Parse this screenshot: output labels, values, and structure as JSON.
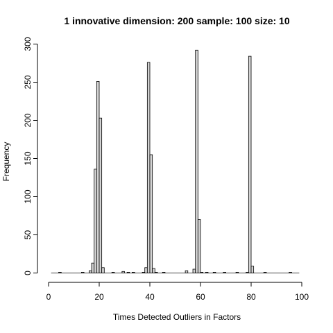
{
  "chart_data": {
    "type": "bar",
    "title": "1 innovative dimension: 200 sample: 100 size: 10",
    "xlabel": "Times Detected Outliers in Factors",
    "ylabel": "Frequency",
    "xlim": [
      0,
      100
    ],
    "ylim": [
      0,
      300
    ],
    "xticks": [
      "0",
      "20",
      "40",
      "60",
      "80",
      "100"
    ],
    "yticks": [
      "0",
      "50",
      "100",
      "150",
      "200",
      "250",
      "300"
    ],
    "bin_width": 1,
    "bins": [
      {
        "x": 4,
        "count": 1
      },
      {
        "x": 13,
        "count": 1
      },
      {
        "x": 16,
        "count": 3
      },
      {
        "x": 17,
        "count": 13
      },
      {
        "x": 18,
        "count": 136
      },
      {
        "x": 19,
        "count": 251
      },
      {
        "x": 20,
        "count": 203
      },
      {
        "x": 21,
        "count": 7
      },
      {
        "x": 25,
        "count": 1
      },
      {
        "x": 29,
        "count": 2
      },
      {
        "x": 31,
        "count": 1
      },
      {
        "x": 33,
        "count": 1
      },
      {
        "x": 37,
        "count": 1
      },
      {
        "x": 38,
        "count": 7
      },
      {
        "x": 39,
        "count": 276
      },
      {
        "x": 40,
        "count": 155
      },
      {
        "x": 41,
        "count": 6
      },
      {
        "x": 42,
        "count": 1
      },
      {
        "x": 45,
        "count": 1
      },
      {
        "x": 54,
        "count": 3
      },
      {
        "x": 57,
        "count": 5
      },
      {
        "x": 58,
        "count": 292
      },
      {
        "x": 59,
        "count": 70
      },
      {
        "x": 60,
        "count": 1
      },
      {
        "x": 62,
        "count": 1
      },
      {
        "x": 65,
        "count": 1
      },
      {
        "x": 69,
        "count": 1
      },
      {
        "x": 74,
        "count": 1
      },
      {
        "x": 78,
        "count": 1
      },
      {
        "x": 79,
        "count": 284
      },
      {
        "x": 80,
        "count": 9
      },
      {
        "x": 85,
        "count": 1
      },
      {
        "x": 95,
        "count": 1
      }
    ]
  }
}
